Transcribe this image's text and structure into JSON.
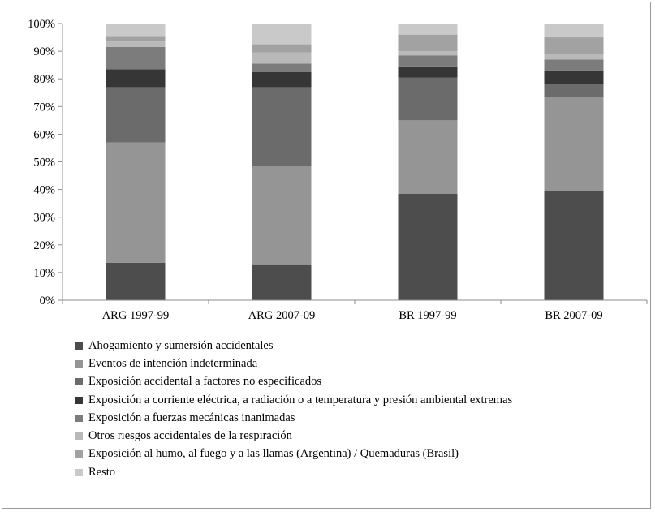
{
  "chart_data": {
    "type": "stacked-bar-100",
    "categories": [
      "ARG 1997-99",
      "ARG 2007-09",
      "BR 1997-99",
      "BR 2007-09"
    ],
    "ylim": [
      0,
      100
    ],
    "yticks": [
      "0%",
      "10%",
      "20%",
      "30%",
      "40%",
      "50%",
      "60%",
      "70%",
      "80%",
      "90%",
      "100%"
    ],
    "legend_position": "bottom",
    "grid": false,
    "series": [
      {
        "name": "Ahogamiento y sumersión accidentales",
        "color": "#4d4d4d",
        "values": [
          13.5,
          13,
          38.5,
          39.5
        ]
      },
      {
        "name": "Eventos de intención indeterminada",
        "color": "#959595",
        "values": [
          43.5,
          35.5,
          26.5,
          34
        ]
      },
      {
        "name": "Exposición accidental a factores no especificados",
        "color": "#6b6b6b",
        "values": [
          20,
          28.5,
          15.5,
          4.5
        ]
      },
      {
        "name": "Exposición a corriente eléctrica, a radiación o a temperatura y presión ambiental extremas",
        "color": "#363636",
        "values": [
          6.5,
          5.5,
          4,
          5
        ]
      },
      {
        "name": "Exposición a fuerzas mecánicas inanimadas",
        "color": "#7c7c7c",
        "values": [
          8,
          3,
          4,
          4
        ]
      },
      {
        "name": "Otros riesgos accidentales de la respiración",
        "color": "#b9b9b9",
        "values": [
          2,
          4,
          1.5,
          2
        ]
      },
      {
        "name": "Exposición al humo, al fuego y a las llamas (Argentina) / Quemaduras (Brasil)",
        "color": "#a2a2a2",
        "values": [
          2,
          3,
          6,
          6
        ]
      },
      {
        "name": "Resto",
        "color": "#c9c9c9",
        "values": [
          4.5,
          7.5,
          4,
          5
        ]
      }
    ]
  }
}
